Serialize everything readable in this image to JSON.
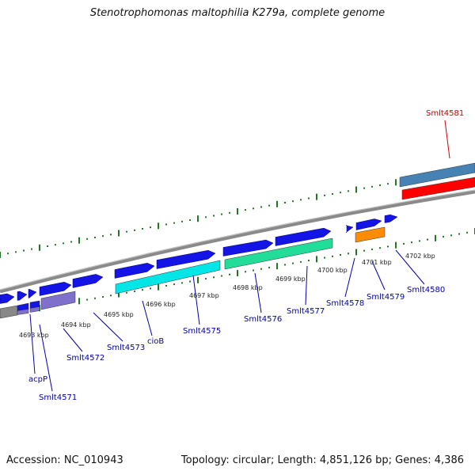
{
  "title": "Stenotrophomonas maltophilia K279a, complete genome",
  "footer": {
    "accession": "Accession: NC_010943",
    "topology": "Topology: circular; Length: 4,851,126 bp; Genes: 4,386"
  },
  "colors": {
    "cds_blue": "#1414e6",
    "rna_cyan": "#00e5e5",
    "rna_green": "#22dd99",
    "orange": "#ff8c00",
    "purple": "#7f70cc",
    "steelblue": "#4682b4",
    "red": "#ff0000",
    "backbone": "#888888",
    "tick": "#227722",
    "label_blue": "#0000aa",
    "label_red": "#cc0000"
  },
  "ruler": [
    "4693 kbp",
    "4694 kbp",
    "4695 kbp",
    "4696 kbp",
    "4697 kbp",
    "4698 kbp",
    "4699 kbp",
    "4700 kbp",
    "4701 kbp",
    "4702 kbp"
  ],
  "genes": [
    {
      "name": "acpP",
      "color": "label_blue"
    },
    {
      "name": "Smlt4571",
      "color": "label_blue"
    },
    {
      "name": "Smlt4572",
      "color": "label_blue"
    },
    {
      "name": "Smlt4573",
      "color": "label_blue"
    },
    {
      "name": "cioB",
      "color": "label_blue"
    },
    {
      "name": "Smlt4575",
      "color": "label_blue"
    },
    {
      "name": "Smlt4576",
      "color": "label_blue"
    },
    {
      "name": "Smlt4577",
      "color": "label_blue"
    },
    {
      "name": "Smlt4578",
      "color": "label_blue"
    },
    {
      "name": "Smlt4579",
      "color": "label_blue"
    },
    {
      "name": "Smlt4580",
      "color": "label_blue"
    },
    {
      "name": "Smlt4581",
      "color": "label_red"
    }
  ]
}
